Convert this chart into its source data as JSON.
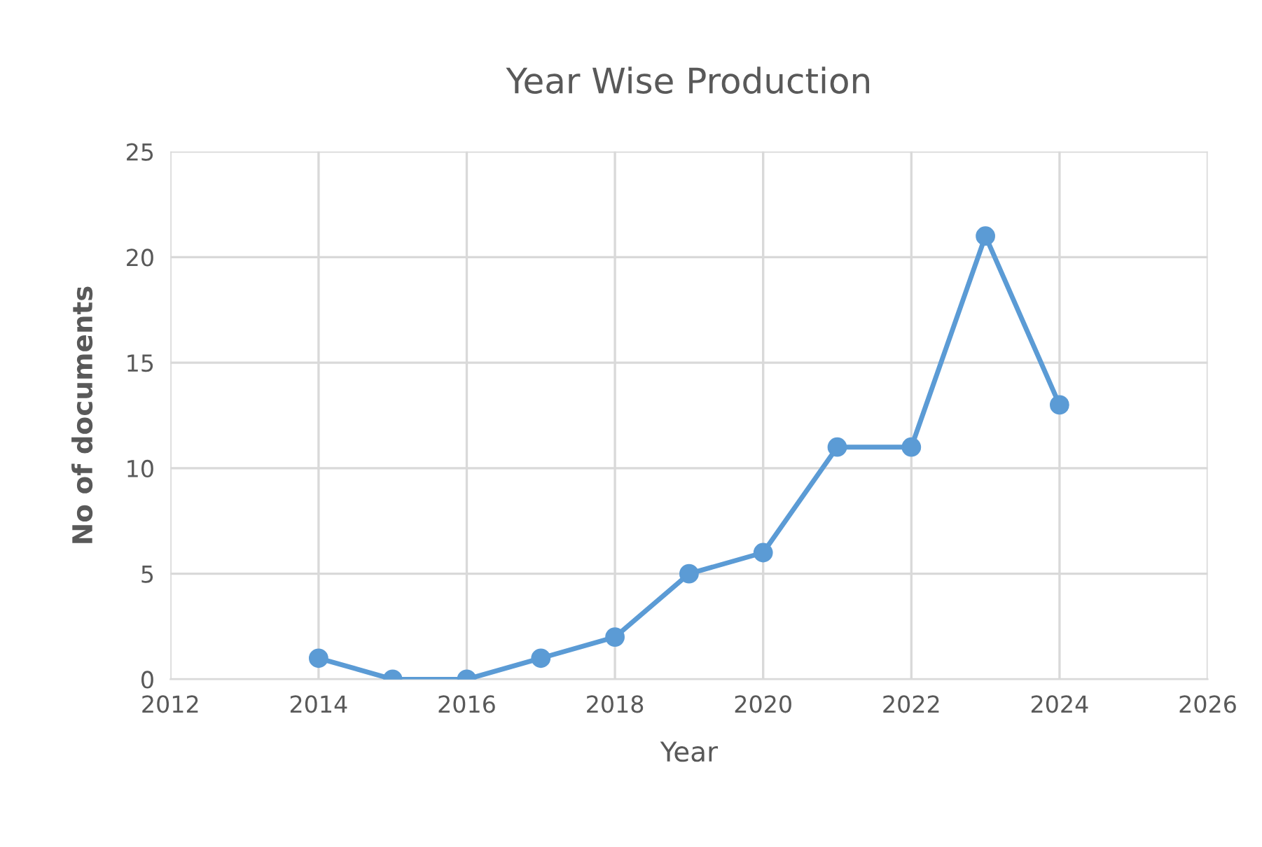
{
  "chart_data": {
    "type": "line",
    "title": "Year Wise Production",
    "xlabel": "Year",
    "ylabel": "No of documents",
    "x": [
      2014,
      2015,
      2016,
      2017,
      2018,
      2019,
      2020,
      2021,
      2022,
      2023,
      2024
    ],
    "series": [
      {
        "color": "#5b9bd5",
        "values": [
          1,
          0,
          0,
          1,
          2,
          5,
          6,
          11,
          11,
          21,
          13
        ]
      }
    ],
    "xlim": [
      2012,
      2026
    ],
    "xticks": [
      2012,
      2014,
      2016,
      2018,
      2020,
      2022,
      2024,
      2026
    ],
    "ylim": [
      0,
      25
    ],
    "yticks": [
      0,
      5,
      10,
      15,
      20,
      25
    ],
    "grid": true,
    "marker": "circle",
    "line_style": "solid"
  }
}
